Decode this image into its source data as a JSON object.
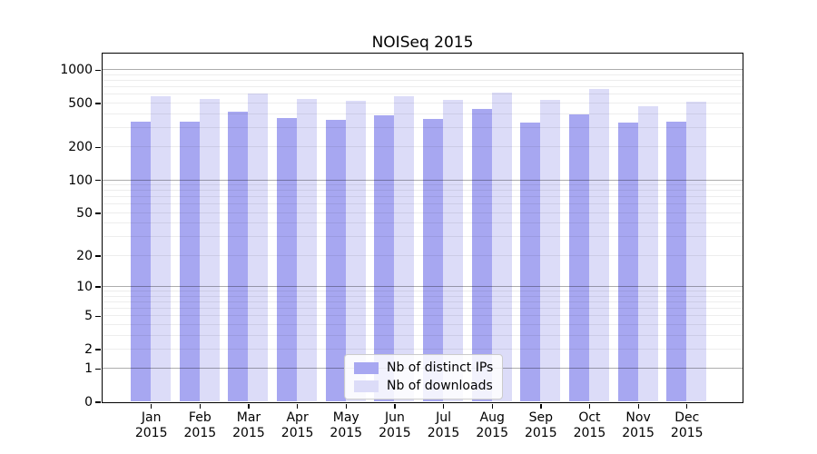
{
  "chart_data": {
    "type": "bar",
    "title": "NOISeq 2015",
    "categories": [
      "Jan 2015",
      "Feb 2015",
      "Mar 2015",
      "Apr 2015",
      "May 2015",
      "Jun 2015",
      "Jul 2015",
      "Aug 2015",
      "Sep 2015",
      "Oct 2015",
      "Nov 2015",
      "Dec 2015"
    ],
    "series": [
      {
        "name": "Nb of distinct IPs",
        "color": "#a7a7f1",
        "values": [
          340,
          340,
          420,
          365,
          350,
          385,
          360,
          445,
          335,
          395,
          330,
          340
        ]
      },
      {
        "name": "Nb of downloads",
        "color": "#dcdcf8",
        "values": [
          570,
          540,
          610,
          540,
          525,
          575,
          530,
          620,
          530,
          665,
          470,
          515
        ]
      }
    ],
    "xlabel": "",
    "ylabel": "",
    "yscale": "log10(1+y)",
    "yticks": [
      0,
      1,
      2,
      5,
      10,
      20,
      50,
      100,
      200,
      500,
      1000
    ],
    "ylim": [
      0,
      1400
    ],
    "grid": {
      "major_gridlines_at": [
        1,
        10,
        100,
        1000
      ],
      "minor_gridlines": "2-9 per decade",
      "drawn_over_bars": true
    },
    "legend": {
      "position": "lower center inside plot",
      "entries": [
        "Nb of distinct IPs",
        "Nb of downloads"
      ]
    }
  }
}
